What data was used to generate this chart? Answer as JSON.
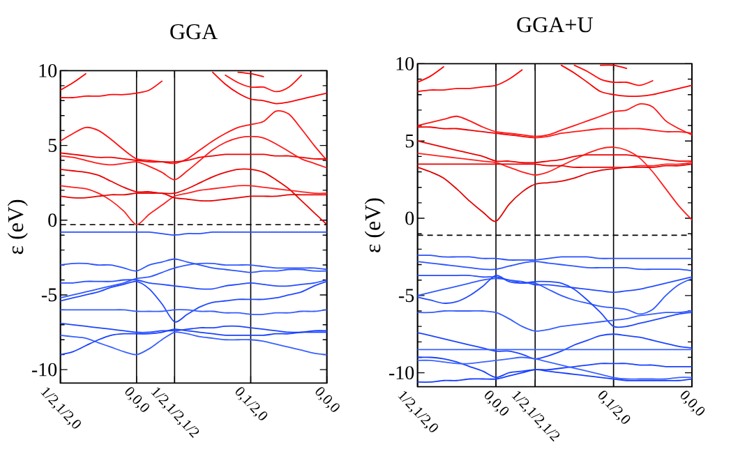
{
  "chart_data": [
    {
      "type": "line",
      "title": "GGA",
      "ylabel": "ε (eV)",
      "grid": "x",
      "categories": [
        "1/2,1/2,0",
        null,
        null,
        null,
        null,
        null,
        "0,0,0",
        null,
        null,
        "1/2,1/2,1/2",
        null,
        null,
        null,
        null,
        null,
        "0,1/2,0",
        null,
        null,
        null,
        null,
        null,
        "0,0,0"
      ],
      "ylim": [
        -10.9,
        10
      ],
      "yticks": [
        -10,
        {
          "value": -9,
          "label": null
        },
        {
          "value": -8,
          "label": null
        },
        {
          "value": -7,
          "label": null
        },
        {
          "value": -6,
          "label": null
        },
        -5,
        {
          "value": -4,
          "label": null
        },
        {
          "value": -3,
          "label": null
        },
        {
          "value": -2,
          "label": null
        },
        {
          "value": -1,
          "label": null
        },
        0,
        {
          "value": 1,
          "label": null
        },
        {
          "value": 2,
          "label": null
        },
        {
          "value": 3,
          "label": null
        },
        {
          "value": 4,
          "label": null
        },
        5,
        {
          "value": 6,
          "label": null
        },
        {
          "value": 7,
          "label": null
        },
        {
          "value": 8,
          "label": null
        },
        {
          "value": 9,
          "label": null
        },
        10
      ],
      "ref_lines": [
        {
          "axis": "y",
          "value": -0.3,
          "line_style": "dashed",
          "color": "#000000"
        }
      ],
      "series": [
        {
          "color": "#ff0000",
          "values": [
            8.7,
            9.2,
            9.8,
            null,
            null,
            null,
            null,
            null,
            null,
            null,
            null,
            null,
            null,
            null,
            null,
            null,
            null,
            null,
            null,
            null,
            null,
            null
          ]
        },
        {
          "color": "#ff0606",
          "values": [
            8.2,
            8.2,
            8.3,
            8.3,
            8.4,
            8.4,
            8.5,
            8.7,
            9.3,
            null,
            null,
            null,
            null,
            null,
            null,
            null,
            null,
            null,
            null,
            null,
            null,
            null
          ]
        },
        {
          "color": "#fa0000",
          "values": [
            null,
            null,
            null,
            null,
            null,
            null,
            null,
            null,
            null,
            null,
            null,
            null,
            9.9,
            9.1,
            8.5,
            8.1,
            8.0,
            7.8,
            7.9,
            8.1,
            8.3,
            8.5
          ]
        },
        {
          "color": "#ff0c0c",
          "values": [
            null,
            null,
            null,
            null,
            null,
            null,
            null,
            null,
            null,
            null,
            null,
            null,
            null,
            9.7,
            9.2,
            8.9,
            8.9,
            8.6,
            8.9,
            9.7,
            null,
            null
          ]
        },
        {
          "color": "#f50000",
          "values": [
            null,
            null,
            null,
            null,
            null,
            null,
            null,
            null,
            null,
            null,
            null,
            null,
            null,
            null,
            9.9,
            9.8,
            9.6,
            null,
            null,
            null,
            null,
            null
          ]
        },
        {
          "color": "#ff1212",
          "values": [
            5.3,
            5.8,
            6.2,
            6.0,
            5.4,
            4.7,
            4.1,
            4.0,
            3.9,
            3.8,
            4.1,
            4.7,
            5.3,
            5.8,
            6.2,
            6.4,
            6.6,
            7.3,
            7.1,
            6.1,
            5.0,
            4.0
          ]
        },
        {
          "color": "#f00000",
          "values": [
            4.5,
            4.4,
            4.3,
            4.2,
            4.2,
            4.1,
            4.0,
            3.9,
            3.9,
            3.9,
            4.0,
            4.2,
            4.3,
            4.4,
            4.4,
            4.4,
            4.4,
            4.3,
            4.3,
            4.2,
            4.1,
            4.1
          ]
        },
        {
          "color": "#ff1818",
          "values": [
            4.3,
            4.2,
            4.0,
            3.8,
            3.7,
            3.8,
            3.9,
            3.6,
            3.2,
            2.7,
            3.3,
            4.0,
            4.7,
            5.2,
            5.5,
            5.6,
            5.5,
            5.1,
            4.6,
            4.1,
            3.8,
            3.5
          ]
        },
        {
          "color": "#eb0000",
          "values": [
            3.4,
            3.3,
            3.2,
            3.0,
            2.6,
            2.2,
            1.9,
            1.9,
            1.8,
            1.8,
            2.1,
            2.5,
            2.9,
            3.2,
            3.4,
            3.4,
            3.2,
            2.7,
            2.1,
            1.3,
            0.5,
            -0.3
          ]
        },
        {
          "color": "#ff1e1e",
          "values": [
            2.3,
            2.2,
            2.1,
            1.8,
            1.3,
            0.6,
            -0.3,
            0.4,
            1.0,
            1.6,
            1.8,
            2.0,
            2.1,
            2.2,
            2.3,
            2.3,
            2.2,
            2.1,
            2.0,
            1.9,
            1.8,
            1.8
          ]
        },
        {
          "color": "#e60000",
          "values": [
            1.6,
            1.5,
            1.5,
            1.6,
            1.7,
            1.7,
            1.8,
            1.8,
            1.8,
            1.5,
            1.4,
            1.3,
            1.3,
            1.4,
            1.5,
            1.6,
            1.6,
            1.6,
            1.7,
            1.7,
            1.7,
            1.7
          ]
        },
        {
          "color": "#2850ff",
          "values": [
            -0.8,
            -0.8,
            -0.8,
            -0.8,
            -0.8,
            -0.8,
            -0.8,
            -0.8,
            -0.9,
            -1.0,
            -0.9,
            -0.9,
            -0.8,
            -0.8,
            -0.8,
            -0.8,
            -0.8,
            -0.8,
            -0.8,
            -0.8,
            -0.8,
            -0.8
          ]
        },
        {
          "color": "#2c54ff",
          "values": [
            -3.0,
            -2.9,
            -2.9,
            -3.0,
            -3.0,
            -3.2,
            -3.4,
            -3.0,
            -2.8,
            -2.6,
            -2.8,
            -3.0,
            -3.2,
            -3.3,
            -3.4,
            -3.5,
            -3.4,
            -3.4,
            -3.3,
            -3.3,
            -3.4,
            -3.4
          ]
        },
        {
          "color": "#244cff",
          "values": [
            -4.2,
            -4.2,
            -4.1,
            -4.1,
            -4.1,
            -4.0,
            -4.0,
            -4.2,
            -4.3,
            -4.4,
            -4.5,
            -4.6,
            -4.6,
            -4.4,
            -4.3,
            -4.2,
            -4.3,
            -4.4,
            -4.4,
            -4.3,
            -4.2,
            -4.0
          ]
        },
        {
          "color": "#3058ff",
          "values": [
            -5.2,
            -5.0,
            -4.8,
            -4.6,
            -4.4,
            -4.2,
            -3.9,
            -3.8,
            -3.5,
            -3.2,
            -3.0,
            -2.9,
            -2.9,
            -3.0,
            -3.0,
            -3.0,
            -3.1,
            -3.2,
            -3.2,
            -3.2,
            -3.2,
            -3.3
          ]
        },
        {
          "color": "#2048ff",
          "values": [
            -5.4,
            -5.2,
            -5.0,
            -4.8,
            -4.5,
            -4.3,
            -4.1,
            -4.6,
            -5.6,
            -6.8,
            -6.3,
            -5.8,
            -5.5,
            -5.4,
            -5.3,
            -5.3,
            -5.3,
            -5.2,
            -5.0,
            -4.8,
            -4.4,
            -4.1
          ]
        },
        {
          "color": "#345cff",
          "values": [
            -6.0,
            -6.0,
            -6.0,
            -6.0,
            -6.0,
            -6.0,
            -6.1,
            -6.1,
            -6.1,
            -6.0,
            -6.0,
            -6.1,
            -6.1,
            -6.2,
            -6.2,
            -6.3,
            -6.3,
            -6.2,
            -6.2,
            -6.1,
            -6.1,
            -6.0
          ]
        },
        {
          "color": "#1c44ff",
          "values": [
            -6.9,
            -7.0,
            -7.1,
            -7.2,
            -7.3,
            -7.4,
            -7.5,
            -7.5,
            -7.4,
            -7.4,
            -7.3,
            -7.2,
            -7.2,
            -7.1,
            -7.1,
            -7.2,
            -7.3,
            -7.4,
            -7.5,
            -7.5,
            -7.5,
            -7.5
          ]
        },
        {
          "color": "#3860ff",
          "values": [
            -7.7,
            -7.8,
            -7.9,
            -8.2,
            -8.5,
            -8.8,
            -9.0,
            -8.6,
            -8.0,
            -7.5,
            -7.6,
            -7.8,
            -7.9,
            -8.0,
            -8.0,
            -8.0,
            -8.1,
            -8.3,
            -8.5,
            -8.7,
            -8.9,
            -9.0
          ]
        },
        {
          "color": "#1840ff",
          "values": [
            -9.0,
            -8.8,
            -8.4,
            -8.0,
            -7.7,
            -7.6,
            -7.6,
            -7.6,
            -7.5,
            -7.3,
            -7.4,
            -7.5,
            -7.6,
            -7.7,
            -7.7,
            -7.7,
            -7.7,
            -7.6,
            -7.6,
            -7.5,
            -7.4,
            -7.4
          ]
        }
      ]
    },
    {
      "type": "line",
      "title": "GGA+U",
      "ylabel": "ε (eV)",
      "grid": "x",
      "categories": [
        "1/2,1/2,0",
        null,
        null,
        null,
        null,
        null,
        "0,0,0",
        null,
        null,
        "1/2,1/2,1/2",
        null,
        null,
        null,
        null,
        null,
        "0,1/2,0",
        null,
        null,
        null,
        null,
        null,
        "0,0,0"
      ],
      "ylim": [
        -10.9,
        10
      ],
      "yticks": [
        -10,
        {
          "value": -9,
          "label": null
        },
        {
          "value": -8,
          "label": null
        },
        {
          "value": -7,
          "label": null
        },
        {
          "value": -6,
          "label": null
        },
        -5,
        {
          "value": -4,
          "label": null
        },
        {
          "value": -3,
          "label": null
        },
        {
          "value": -2,
          "label": null
        },
        {
          "value": -1,
          "label": null
        },
        0,
        {
          "value": 1,
          "label": null
        },
        {
          "value": 2,
          "label": null
        },
        {
          "value": 3,
          "label": null
        },
        {
          "value": 4,
          "label": null
        },
        5,
        {
          "value": 6,
          "label": null
        },
        {
          "value": 7,
          "label": null
        },
        {
          "value": 8,
          "label": null
        },
        {
          "value": 9,
          "label": null
        },
        10
      ],
      "ref_lines": [
        {
          "axis": "y",
          "value": -1.1,
          "line_style": "dashed",
          "color": "#000000"
        }
      ],
      "series": [
        {
          "color": "#ff0000",
          "values": [
            8.8,
            9.2,
            9.8,
            null,
            null,
            null,
            null,
            null,
            null,
            null,
            null,
            null,
            null,
            null,
            null,
            null,
            null,
            null,
            null,
            null,
            null,
            null
          ]
        },
        {
          "color": "#ff0606",
          "values": [
            8.2,
            8.3,
            8.3,
            8.4,
            8.4,
            8.5,
            8.6,
            9.0,
            9.6,
            null,
            null,
            null,
            null,
            null,
            null,
            null,
            null,
            null,
            null,
            null,
            null,
            null
          ]
        },
        {
          "color": "#fa0000",
          "values": [
            null,
            null,
            null,
            null,
            null,
            null,
            null,
            null,
            null,
            null,
            null,
            9.9,
            9.4,
            8.8,
            8.2,
            8.0,
            7.9,
            7.9,
            8.0,
            8.2,
            8.4,
            8.6
          ]
        },
        {
          "color": "#ff0c0c",
          "values": [
            null,
            null,
            null,
            null,
            null,
            null,
            null,
            null,
            null,
            null,
            null,
            null,
            9.9,
            9.5,
            9.0,
            8.8,
            8.8,
            8.6,
            8.9,
            null,
            null,
            null
          ]
        },
        {
          "color": "#f50000",
          "values": [
            null,
            null,
            null,
            null,
            null,
            null,
            null,
            null,
            null,
            null,
            null,
            null,
            null,
            null,
            9.9,
            9.9,
            9.7,
            null,
            null,
            null,
            null,
            null
          ]
        },
        {
          "color": "#ff1212",
          "values": [
            6.0,
            6.2,
            6.4,
            6.6,
            6.3,
            5.9,
            5.6,
            5.5,
            5.4,
            5.3,
            5.4,
            5.7,
            6.0,
            6.3,
            6.6,
            6.9,
            7.0,
            7.4,
            7.2,
            6.3,
            5.8,
            5.4
          ]
        },
        {
          "color": "#f00000",
          "values": [
            5.9,
            5.9,
            5.8,
            5.8,
            5.7,
            5.6,
            5.5,
            5.4,
            5.3,
            5.2,
            null,
            null,
            null,
            null,
            null,
            null,
            null,
            null,
            null,
            null,
            null,
            null
          ]
        },
        {
          "color": "#ff1818",
          "values": [
            null,
            null,
            null,
            null,
            null,
            null,
            null,
            null,
            null,
            5.2,
            5.3,
            5.5,
            5.6,
            5.7,
            5.8,
            5.8,
            5.8,
            5.8,
            5.7,
            5.6,
            5.6,
            5.5
          ]
        },
        {
          "color": "#eb0000",
          "values": [
            5.0,
            4.8,
            4.6,
            4.4,
            4.2,
            4.0,
            3.7,
            3.7,
            3.6,
            3.6,
            3.7,
            3.8,
            4.0,
            4.1,
            4.1,
            4.1,
            4.1,
            4.0,
            3.9,
            3.8,
            3.7,
            3.7
          ]
        },
        {
          "color": "#ff1e1e",
          "values": [
            4.2,
            4.1,
            4.0,
            3.9,
            3.8,
            3.7,
            3.6,
            3.3,
            3.0,
            2.8,
            3.0,
            3.4,
            3.8,
            4.2,
            4.5,
            4.6,
            4.4,
            3.9,
            3.0,
            1.9,
            0.8,
            -0.1
          ]
        },
        {
          "color": "#e60000",
          "values": [
            3.5,
            3.5,
            3.5,
            3.5,
            3.5,
            3.5,
            3.5,
            3.5,
            3.5,
            3.5,
            3.4,
            3.4,
            3.3,
            3.3,
            3.3,
            3.3,
            null,
            null,
            null,
            null,
            null,
            null
          ]
        },
        {
          "color": "#ff2424",
          "values": [
            null,
            null,
            null,
            null,
            null,
            null,
            null,
            null,
            null,
            null,
            null,
            null,
            null,
            null,
            null,
            3.3,
            3.3,
            3.4,
            3.4,
            3.5,
            3.5,
            3.6
          ]
        },
        {
          "color": "#e10000",
          "values": [
            3.3,
            3.0,
            2.6,
            1.9,
            1.1,
            0.4,
            -0.2,
            0.9,
            1.7,
            2.2,
            2.3,
            2.4,
            2.6,
            2.9,
            3.1,
            3.2,
            3.3,
            3.3,
            3.3,
            3.4,
            3.4,
            3.5
          ]
        },
        {
          "color": "#2850ff",
          "values": [
            -2.4,
            -2.4,
            -2.5,
            -2.5,
            -2.5,
            -2.6,
            -2.6,
            -2.7,
            -2.7,
            -2.7,
            -2.6,
            -2.5,
            -2.5,
            -2.5,
            -2.6,
            -2.6,
            -2.6,
            -2.6,
            -2.6,
            -2.6,
            -2.6,
            -2.6
          ]
        },
        {
          "color": "#2c54ff",
          "values": [
            -2.8,
            -2.9,
            -3.0,
            -3.1,
            -3.2,
            -3.3,
            -3.3,
            -3.1,
            -2.9,
            -2.8,
            -2.9,
            -3.0,
            -3.1,
            -3.2,
            -3.2,
            -3.2,
            -3.2,
            -3.3,
            -3.3,
            -3.3,
            -3.3,
            -3.4
          ]
        },
        {
          "color": "#244cff",
          "values": [
            -3.7,
            -3.7,
            -3.7,
            -3.7,
            -3.7,
            -3.8,
            -3.8,
            -4.0,
            -4.1,
            -4.3,
            -4.3,
            -4.4,
            -4.5,
            -4.6,
            -4.7,
            -4.8,
            -4.7,
            -4.6,
            -4.4,
            -4.2,
            -4.0,
            -3.8
          ]
        },
        {
          "color": "#3058ff",
          "values": [
            -5.0,
            -4.8,
            -4.6,
            -4.4,
            -4.2,
            -4.0,
            -3.9,
            -4.0,
            -4.2,
            -4.2,
            -4.6,
            -5.0,
            -5.3,
            -5.5,
            -5.7,
            -5.8,
            -5.9,
            -6.2,
            -5.9,
            -5.0,
            -4.3,
            -3.9
          ]
        },
        {
          "color": "#2048ff",
          "values": [
            -5.1,
            -5.3,
            -5.5,
            -5.4,
            -5.0,
            -4.4,
            -3.7,
            -4.1,
            -4.2,
            -4.1,
            -4.1,
            -4.2,
            -4.6,
            -5.3,
            -6.1,
            -7.0,
            -7.0,
            -6.8,
            -6.6,
            -6.4,
            -6.2,
            -6.1
          ]
        },
        {
          "color": "#345cff",
          "values": [
            -6.1,
            -6.1,
            -6.0,
            -6.0,
            -6.0,
            -6.0,
            -6.1,
            -6.5,
            -7.0,
            -7.3,
            -7.2,
            -7.0,
            -6.9,
            -6.8,
            -6.7,
            -6.6,
            -6.5,
            -6.3,
            -6.2,
            -6.1,
            -6.1,
            -6.0
          ]
        },
        {
          "color": "#1c44ff",
          "values": [
            -7.4,
            -7.6,
            -7.8,
            -8.0,
            -8.2,
            -8.4,
            -8.6,
            -8.6,
            -8.8,
            -9.1,
            -8.9,
            -8.6,
            -8.2,
            -7.9,
            -7.6,
            -7.5,
            -7.6,
            -7.7,
            -7.9,
            -8.1,
            -8.3,
            -8.4
          ]
        },
        {
          "color": "#3860ff",
          "values": [
            -8.5,
            -8.5,
            -8.5,
            -8.5,
            -8.5,
            -8.5,
            -8.5,
            -8.5,
            -8.5,
            -8.5,
            -8.5,
            -8.5,
            -8.5,
            -8.5,
            -8.5,
            -8.5,
            -8.5,
            -8.5,
            -8.5,
            -8.5,
            -8.5,
            -8.5
          ]
        },
        {
          "color": "#1840ff",
          "values": [
            -9.0,
            -9.0,
            -9.1,
            -9.3,
            -9.6,
            -9.9,
            -10.3,
            -10.0,
            -9.9,
            -9.8,
            -9.8,
            -9.7,
            -9.6,
            -9.5,
            -9.4,
            -9.4,
            -9.4,
            -9.5,
            -9.5,
            -9.6,
            -9.6,
            -9.6
          ]
        },
        {
          "color": "#3c64ff",
          "values": [
            -9.2,
            -9.2,
            -9.3,
            -9.4,
            -9.4,
            -9.3,
            -9.2,
            -9.1,
            -9.0,
            -9.1,
            -9.3,
            -9.5,
            -9.7,
            -9.9,
            -10.1,
            -10.3,
            -10.4,
            -10.4,
            -10.4,
            -10.4,
            -10.3,
            -10.3
          ]
        },
        {
          "color": "#143cff",
          "values": [
            -10.6,
            -10.6,
            -10.5,
            -10.5,
            -10.4,
            -10.4,
            -10.4,
            -10.2,
            -10.0,
            -9.8,
            -9.9,
            -10.0,
            -10.1,
            -10.2,
            -10.3,
            -10.4,
            -10.5,
            -10.5,
            -10.5,
            -10.5,
            -10.5,
            -10.4
          ]
        }
      ]
    }
  ]
}
